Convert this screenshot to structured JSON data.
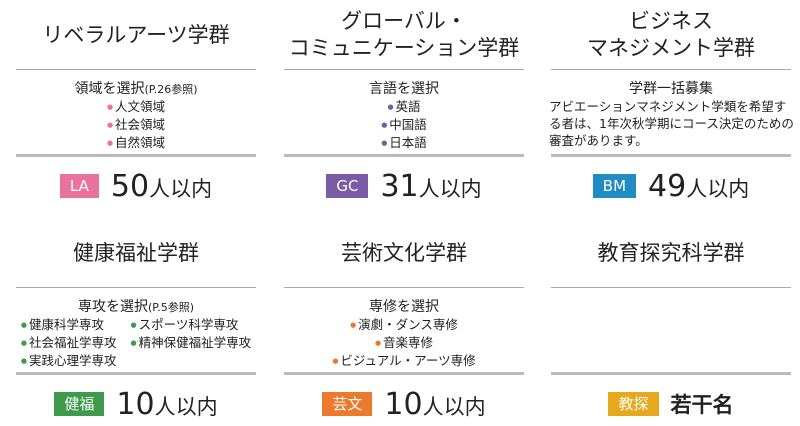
{
  "cards": [
    {
      "title": [
        "リベラルアーツ学群"
      ],
      "subtitle": "領域を選択",
      "subtitle_note": "(P.26参照)",
      "items": [
        "人文領域",
        "社会領域",
        "自然領域"
      ],
      "badge": "LA",
      "color": "#e8739c",
      "count": "50",
      "unit": "人以内"
    },
    {
      "title": [
        "グローバル・",
        "コミュニケーション学群"
      ],
      "subtitle": "言語を選択",
      "items": [
        "英語",
        "中国語",
        "日本語"
      ],
      "badge": "GC",
      "color": "#7a5ca6",
      "count": "31",
      "unit": "人以内"
    },
    {
      "title": [
        "ビジネス",
        "マネジメント学群"
      ],
      "subtitle": "学群一括募集",
      "description": "アビエーションマネジメント学類を希望する者は、1年次秋学期にコース決定のための審査があります。",
      "badge": "BM",
      "color": "#1f8cc4",
      "count": "49",
      "unit": "人以内"
    },
    {
      "title": [
        "健康福祉学群"
      ],
      "subtitle": "専攻を選択",
      "subtitle_note": "(P.5参照)",
      "items": [
        "健康科学専攻",
        "スポーツ科学専攻",
        "社会福祉学専攻",
        "精神保健福祉学専攻",
        "実践心理学専攻"
      ],
      "badge": "健福",
      "color": "#3f9b4b",
      "count": "10",
      "unit": "人以内"
    },
    {
      "title": [
        "芸術文化学群"
      ],
      "subtitle": "専修を選択",
      "items": [
        "演劇・ダンス専修",
        "音楽専修",
        "ビジュアル・アーツ専修"
      ],
      "badge": "芸文",
      "color": "#ec7a2c",
      "count": "10",
      "unit": "人以内"
    },
    {
      "title": [
        "教育探究科学群"
      ],
      "badge": "教探",
      "color": "#e6a81c",
      "count": "若干名"
    }
  ]
}
